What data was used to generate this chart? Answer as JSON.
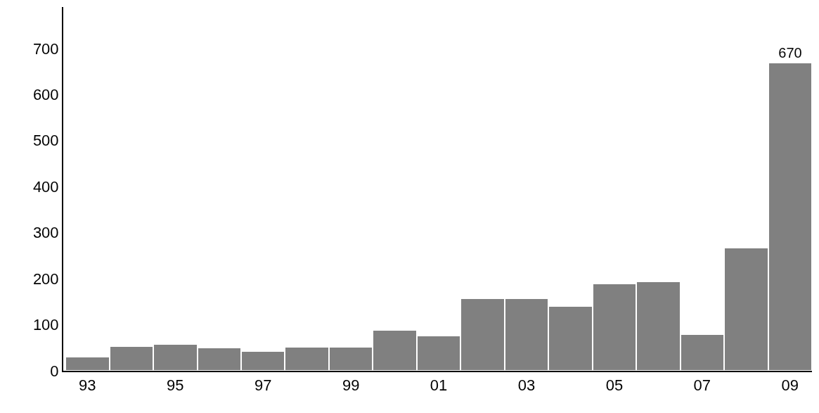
{
  "chart_data": {
    "type": "bar",
    "categories": [
      "93",
      null,
      "95",
      null,
      "97",
      null,
      "99",
      null,
      "01",
      null,
      "03",
      null,
      "05",
      null,
      "07",
      null,
      "09"
    ],
    "values": [
      30,
      54,
      58,
      51,
      43,
      52,
      52,
      89,
      77,
      157,
      157,
      140,
      190,
      194,
      79,
      268,
      670
    ],
    "value_labels": [
      null,
      null,
      null,
      null,
      null,
      null,
      null,
      null,
      null,
      null,
      null,
      null,
      null,
      null,
      null,
      null,
      "670"
    ],
    "color": "#808080",
    "ylim": [
      0,
      790
    ],
    "yticks": [
      0,
      100,
      200,
      300,
      400,
      500,
      600,
      700
    ]
  }
}
